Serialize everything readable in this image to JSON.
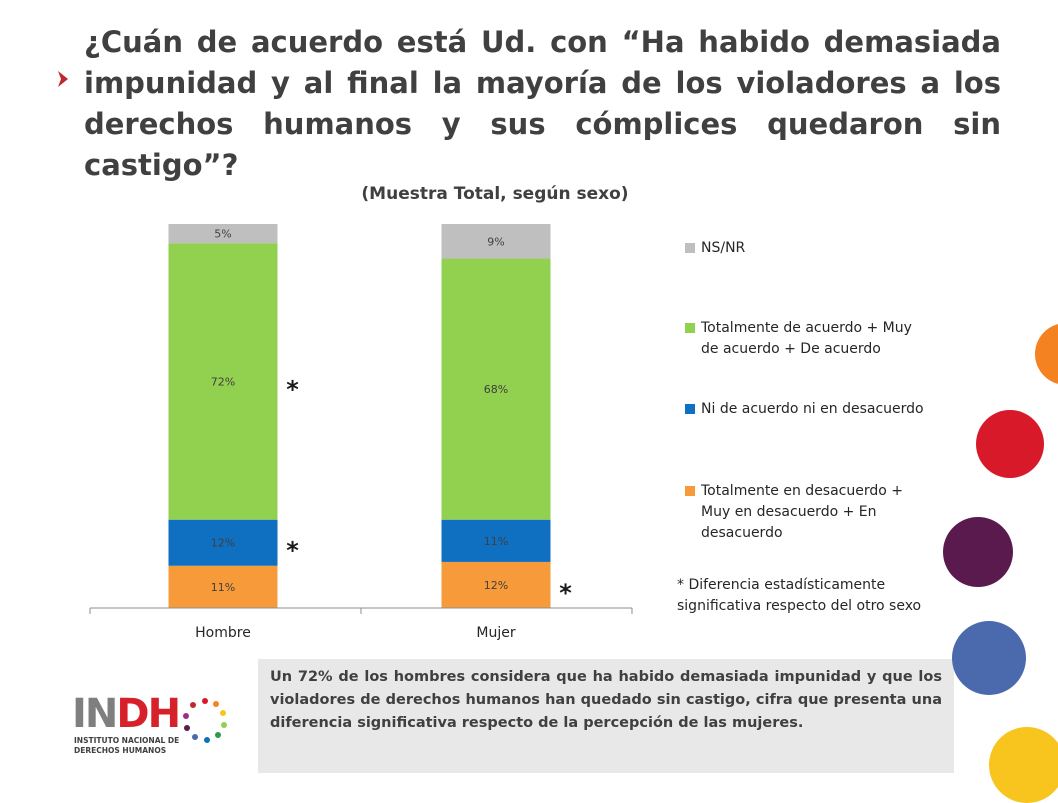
{
  "header": {
    "title": "¿Cuán de acuerdo está Ud. con “Ha habido demasiada impunidad y al final la mayoría de los violadores a los derechos humanos y sus cómplices quedaron sin castigo”?"
  },
  "chart_data": {
    "type": "bar",
    "stacked": true,
    "title": "(Muestra Total, según sexo)",
    "categories": [
      "Hombre",
      "Mujer"
    ],
    "ylim": [
      0,
      100
    ],
    "series": [
      {
        "name": "Totalmente en desacuerdo + Muy en desacuerdo + En desacuerdo",
        "values": [
          11,
          12
        ],
        "labels": [
          "11%",
          "12%"
        ],
        "color": "#f79a3a"
      },
      {
        "name": "Ni de acuerdo ni en desacuerdo",
        "values": [
          12,
          11
        ],
        "labels": [
          "12%",
          "11%"
        ],
        "color": "#0f6fc0"
      },
      {
        "name": "Totalmente de acuerdo + Muy de acuerdo + De acuerdo",
        "values": [
          72,
          68
        ],
        "labels": [
          "72%",
          "68%"
        ],
        "color": "#92d050"
      },
      {
        "name": "NS/NR",
        "values": [
          5,
          9
        ],
        "labels": [
          "5%",
          "9%"
        ],
        "color": "#bfbfbf"
      }
    ],
    "significance_markers": [
      {
        "category": "Hombre",
        "series": "Totalmente de acuerdo + Muy de acuerdo + De acuerdo",
        "mark": "*"
      },
      {
        "category": "Hombre",
        "series": "Ni de acuerdo ni en desacuerdo",
        "mark": "*"
      },
      {
        "category": "Mujer",
        "series": "Totalmente en desacuerdo + Muy en desacuerdo + En desacuerdo",
        "mark": "*"
      }
    ],
    "legend": {
      "position": "right",
      "items": [
        {
          "label": "NS/NR",
          "color": "#bfbfbf"
        },
        {
          "label": "Totalmente de acuerdo + Muy de acuerdo + De acuerdo",
          "color": "#92d050"
        },
        {
          "label": "Ni de acuerdo ni en desacuerdo",
          "color": "#0f6fc0"
        },
        {
          "label": "Totalmente en desacuerdo + Muy en desacuerdo + En desacuerdo",
          "color": "#f79a3a"
        }
      ]
    },
    "footnote": "* Diferencia estadísticamente significativa respecto del otro sexo",
    "grid": false
  },
  "summary": {
    "text": "Un 72% de los hombres considera que ha habido demasiada impunidad y que los violadores de derechos humanos han quedado sin castigo, cifra que presenta una diferencia significativa respecto de la percepción de las mujeres."
  },
  "logo": {
    "name_part1": "IN",
    "name_part2": "DH",
    "subtitle": "INSTITUTO NACIONAL DE DERECHOS HUMANOS"
  },
  "theme": {
    "title_color": "#404040",
    "bullet_color": "#c0282d",
    "decor_circles": [
      "#f58220",
      "#d7192a",
      "#5b1a4d",
      "#4a6aad",
      "#f7c51e"
    ]
  }
}
